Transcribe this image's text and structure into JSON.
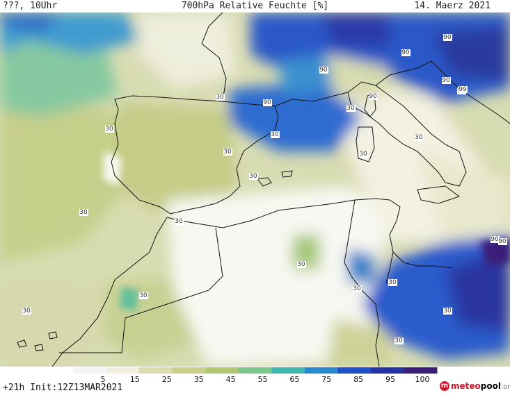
{
  "header": {
    "left": "???, 10Uhr",
    "title": "700hPa Relative Feuchte [%]",
    "date": "14. Maerz 2021"
  },
  "colorbar": {
    "ticks": [
      "5",
      "15",
      "25",
      "35",
      "45",
      "55",
      "65",
      "75",
      "85",
      "95",
      "100"
    ],
    "colors": [
      "#f4f4f4",
      "#f0eedc",
      "#dcdcb0",
      "#c8d08c",
      "#b0c870",
      "#7cc88c",
      "#40b8b0",
      "#2a8ad0",
      "#2050c8",
      "#2434a0",
      "#3a1e78"
    ]
  },
  "footer": {
    "init": "+21h Init:12Z13MAR2021",
    "brand_meteo": "meteo",
    "brand_pool": "pool",
    "brand_org": ".org"
  },
  "contour_labels": [
    "90",
    "90",
    "90",
    "90",
    "90",
    "90",
    "90",
    "30",
    "30",
    "30",
    "30",
    "30",
    "30",
    "30",
    "30",
    "30",
    "30",
    "30",
    "30",
    "30",
    "30",
    "30",
    "30",
    "30",
    "90",
    "90",
    "99"
  ]
}
